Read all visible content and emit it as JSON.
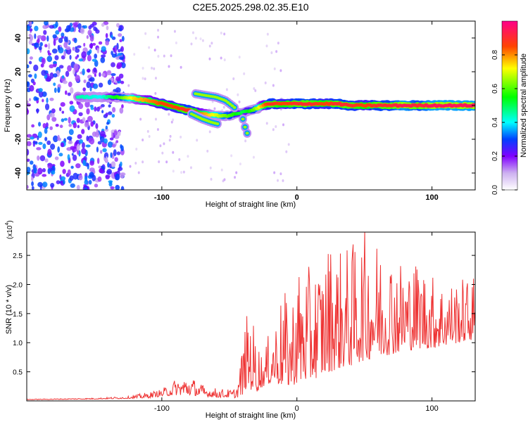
{
  "figure_title": "C2E5.2025.298.02.35.E10",
  "chart_data": [
    {
      "type": "heatmap",
      "title": "C2E5.2025.298.02.35.E10",
      "xlabel": "Height of straight line (km)",
      "ylabel": "Frequency (Hz)",
      "xlim": [
        -200,
        132
      ],
      "ylim": [
        -50,
        50
      ],
      "xticks": [
        -100,
        0,
        100
      ],
      "xtick_labels": [
        "-100",
        "0",
        "100"
      ],
      "yticks": [
        -40,
        -20,
        0,
        20,
        40
      ],
      "ytick_labels": [
        "-40",
        "-20",
        "0",
        "20",
        "40"
      ],
      "colorbar": {
        "label": "Normalized spectral amplitude",
        "range": [
          0,
          1
        ],
        "ticks": [
          0.0,
          0.2,
          0.4,
          0.6,
          0.8
        ],
        "tick_labels": [
          "0.0",
          "0.2",
          "0.4",
          "0.6",
          "0.8"
        ]
      },
      "ridge": {
        "name": "dominant frequency",
        "x": [
          -160,
          -145,
          -130,
          -120,
          -110,
          -100,
          -90,
          -80,
          -70,
          -60,
          -50,
          -45,
          -40,
          -35,
          -30,
          -25,
          -20,
          -10,
          0,
          10,
          20,
          30,
          40,
          50,
          60,
          70,
          80,
          90,
          100,
          110,
          120,
          130
        ],
        "y": [
          5,
          5,
          5,
          4,
          3,
          1,
          -1,
          -3,
          -5,
          -6,
          -6,
          -5,
          -4,
          -3,
          -2,
          0,
          1,
          1,
          1,
          1,
          1,
          1,
          0,
          0,
          0,
          0,
          0,
          0,
          0,
          0,
          0,
          0
        ],
        "amplitude": [
          0.45,
          0.4,
          0.6,
          0.75,
          0.8,
          0.85,
          0.85,
          0.9,
          0.8,
          0.7,
          0.6,
          0.55,
          0.5,
          0.55,
          0.65,
          0.8,
          0.9,
          0.85,
          0.9,
          0.9,
          0.85,
          0.9,
          0.9,
          0.85,
          0.9,
          0.9,
          0.95,
          0.9,
          0.95,
          0.95,
          0.95,
          0.95
        ]
      },
      "branches": [
        {
          "name": "upper branch",
          "x": [
            -75,
            -68,
            -60,
            -53,
            -48,
            -45
          ],
          "y": [
            7,
            6,
            5,
            3,
            0,
            -2
          ]
        },
        {
          "name": "lower branch",
          "x": [
            -78,
            -70,
            -63,
            -58
          ],
          "y": [
            -5,
            -8,
            -10,
            -11
          ]
        },
        {
          "name": "descending tail",
          "x": [
            -40,
            -38,
            -36
          ],
          "y": [
            -8,
            -14,
            -18
          ]
        }
      ],
      "noise_region": {
        "x_range": [
          -200,
          -128
        ],
        "y_range": [
          -50,
          50
        ],
        "amplitude_range": [
          0.1,
          0.35
        ]
      }
    },
    {
      "type": "line",
      "title": "",
      "xlabel": "Height of straight line (km)",
      "ylabel": "SNR (10 * v/v)",
      "y_multiplier": "(x10",
      "y_multiplier_exponent": "4",
      "y_multiplier_close": ")",
      "xlim": [
        -200,
        132
      ],
      "ylim": [
        0,
        2.9
      ],
      "xticks": [
        -100,
        0,
        100
      ],
      "xtick_labels": [
        "-100",
        "0",
        "100"
      ],
      "yticks": [
        0.5,
        1.0,
        1.5,
        2.0,
        2.5
      ],
      "ytick_labels": [
        "0.5",
        "1.0",
        "1.5",
        "2.0",
        "2.5"
      ],
      "color": "#ee3333",
      "envelope": {
        "x": [
          -200,
          -150,
          -125,
          -110,
          -100,
          -90,
          -80,
          -70,
          -60,
          -50,
          -45,
          -40,
          -38,
          -35,
          -30,
          -25,
          -20,
          -15,
          -10,
          -5,
          0,
          10,
          20,
          25,
          30,
          40,
          50,
          60,
          70,
          80,
          90,
          100,
          110,
          120,
          130
        ],
        "base": [
          0.02,
          0.03,
          0.04,
          0.05,
          0.08,
          0.1,
          0.1,
          0.08,
          0.06,
          0.06,
          0.05,
          0.1,
          0.2,
          0.2,
          0.15,
          0.25,
          0.3,
          0.3,
          0.25,
          0.25,
          0.3,
          0.35,
          0.45,
          0.5,
          0.55,
          0.6,
          0.7,
          0.75,
          0.8,
          0.85,
          0.9,
          0.9,
          0.95,
          1.0,
          1.05
        ],
        "peak": [
          0.03,
          0.05,
          0.08,
          0.15,
          0.2,
          0.38,
          0.45,
          0.28,
          0.22,
          0.2,
          0.22,
          1.0,
          1.4,
          1.65,
          1.15,
          0.75,
          1.25,
          1.5,
          1.95,
          1.6,
          2.35,
          2.3,
          2.5,
          2.85,
          2.6,
          2.7,
          2.95,
          2.8,
          2.65,
          2.4,
          2.45,
          2.2,
          2.05,
          2.1,
          2.15
        ]
      }
    }
  ]
}
